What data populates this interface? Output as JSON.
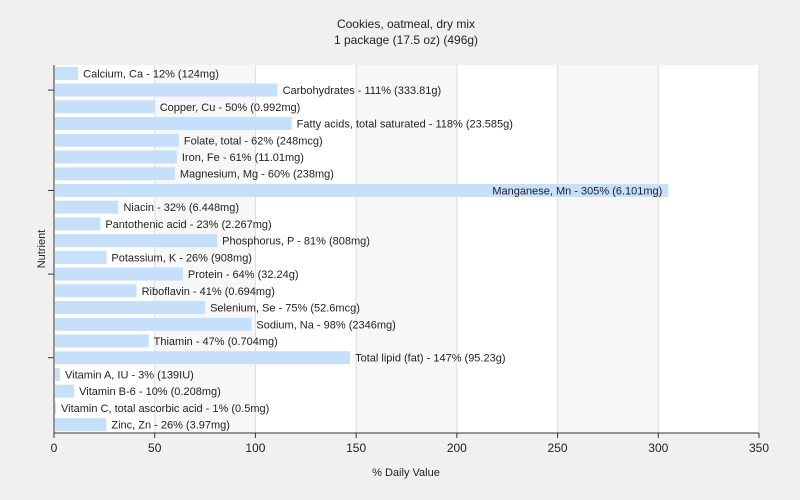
{
  "chart_data": {
    "type": "bar",
    "orientation": "horizontal",
    "title": "Cookies, oatmeal, dry mix",
    "subtitle": "1 package (17.5 oz) (496g)",
    "xlabel": "% Daily Value",
    "ylabel": "Nutrient",
    "xlim": [
      0,
      350
    ],
    "xticks": [
      0,
      50,
      100,
      150,
      200,
      250,
      300,
      350
    ],
    "grid": true,
    "legend": "none",
    "bar_color": "#c6dffa",
    "categories": [
      "Calcium, Ca",
      "Carbohydrates",
      "Copper, Cu",
      "Fatty acids, total saturated",
      "Folate, total",
      "Iron, Fe",
      "Magnesium, Mg",
      "Manganese, Mn",
      "Niacin",
      "Pantothenic acid",
      "Phosphorus, P",
      "Potassium, K",
      "Protein",
      "Riboflavin",
      "Selenium, Se",
      "Sodium, Na",
      "Thiamin",
      "Total lipid (fat)",
      "Vitamin A, IU",
      "Vitamin B-6",
      "Vitamin C, total ascorbic acid",
      "Zinc, Zn"
    ],
    "values": [
      12,
      111,
      50,
      118,
      62,
      61,
      60,
      305,
      32,
      23,
      81,
      26,
      64,
      41,
      75,
      98,
      47,
      147,
      3,
      10,
      1,
      26
    ],
    "labels": [
      "Calcium, Ca - 12% (124mg)",
      "Carbohydrates - 111% (333.81g)",
      "Copper, Cu - 50% (0.992mg)",
      "Fatty acids, total saturated - 118% (23.585g)",
      "Folate, total - 62% (248mcg)",
      "Iron, Fe - 61% (11.01mg)",
      "Magnesium, Mg - 60% (238mg)",
      "Manganese, Mn - 305% (6.101mg)",
      "Niacin - 32% (6.448mg)",
      "Pantothenic acid - 23% (2.267mg)",
      "Phosphorus, P - 81% (808mg)",
      "Potassium, K - 26% (908mg)",
      "Protein - 64% (32.24g)",
      "Riboflavin - 41% (0.694mg)",
      "Selenium, Se - 75% (52.6mcg)",
      "Sodium, Na - 98% (2346mg)",
      "Thiamin - 47% (0.704mg)",
      "Total lipid (fat) - 147% (95.23g)",
      "Vitamin A, IU - 3% (139IU)",
      "Vitamin B-6 - 10% (0.208mg)",
      "Vitamin C, total ascorbic acid - 1% (0.5mg)",
      "Zinc, Zn - 26% (3.97mg)"
    ]
  }
}
